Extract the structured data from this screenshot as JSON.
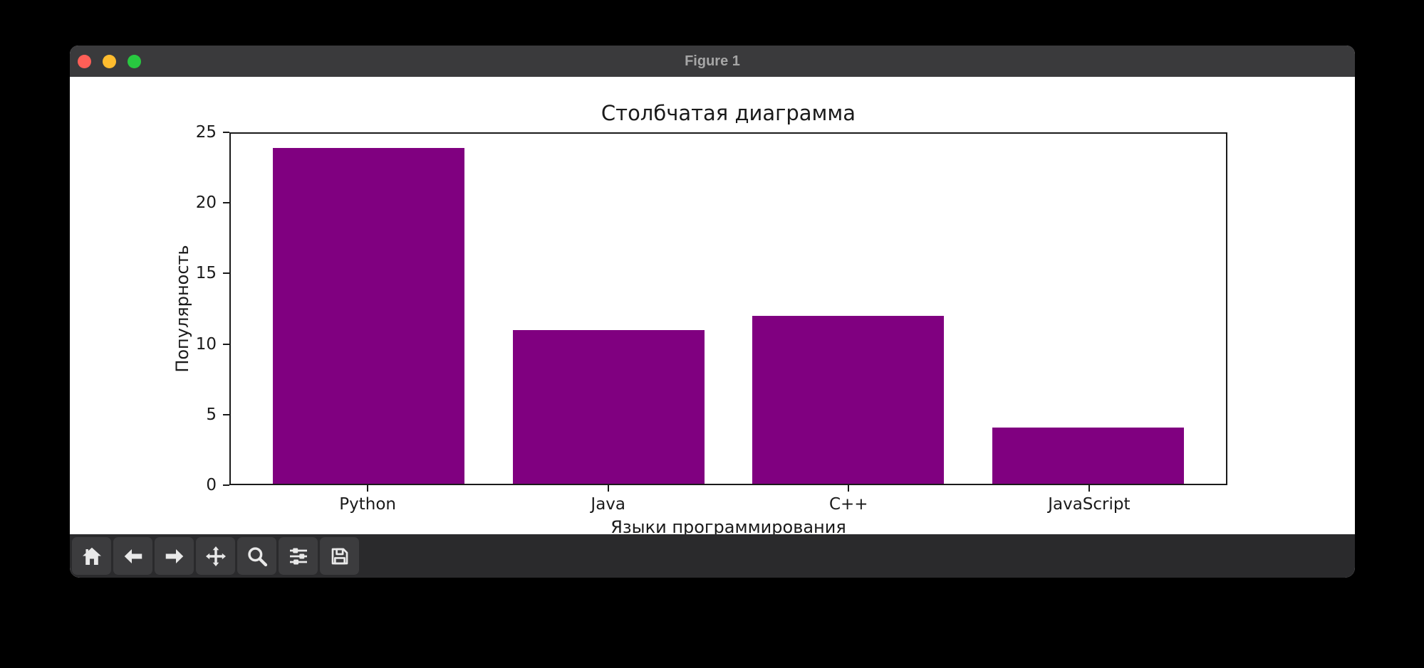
{
  "window": {
    "title": "Figure 1",
    "controls": {
      "close": "close-button",
      "minimize": "minimize-button",
      "maximize": "maximize-button"
    }
  },
  "toolbar": {
    "buttons": [
      {
        "name": "home",
        "icon": "home-icon"
      },
      {
        "name": "back",
        "icon": "back-arrow-icon"
      },
      {
        "name": "forward",
        "icon": "forward-arrow-icon"
      },
      {
        "name": "pan",
        "icon": "pan-arrows-icon"
      },
      {
        "name": "zoom",
        "icon": "zoom-magnifier-icon"
      },
      {
        "name": "configure-subplots",
        "icon": "sliders-icon"
      },
      {
        "name": "save",
        "icon": "save-floppy-icon"
      }
    ]
  },
  "chart_data": {
    "type": "bar",
    "title": "Столбчатая диаграмма",
    "xlabel": "Языки программирования",
    "ylabel": "Популярность",
    "categories": [
      "Python",
      "Java",
      "C++",
      "JavaScript"
    ],
    "values": [
      24,
      11,
      12,
      4
    ],
    "ylim": [
      0,
      25
    ],
    "yticks": [
      0,
      5,
      10,
      15,
      20,
      25
    ],
    "grid": false,
    "legend_position": "none",
    "bar_color": "#800080"
  },
  "colors": {
    "bar": "#800080",
    "titlebar": "#3a3a3c",
    "titlebar_text": "#a6a6a6",
    "toolbar": "#2a2a2c",
    "toolbar_button": "#3c3c3e",
    "icon": "#e9e9e9",
    "close_light": "#ff5f57",
    "minimize_light": "#febc2e",
    "maximize_light": "#28c840",
    "stage_background": "#000000",
    "figure_background": "#ffffff"
  }
}
